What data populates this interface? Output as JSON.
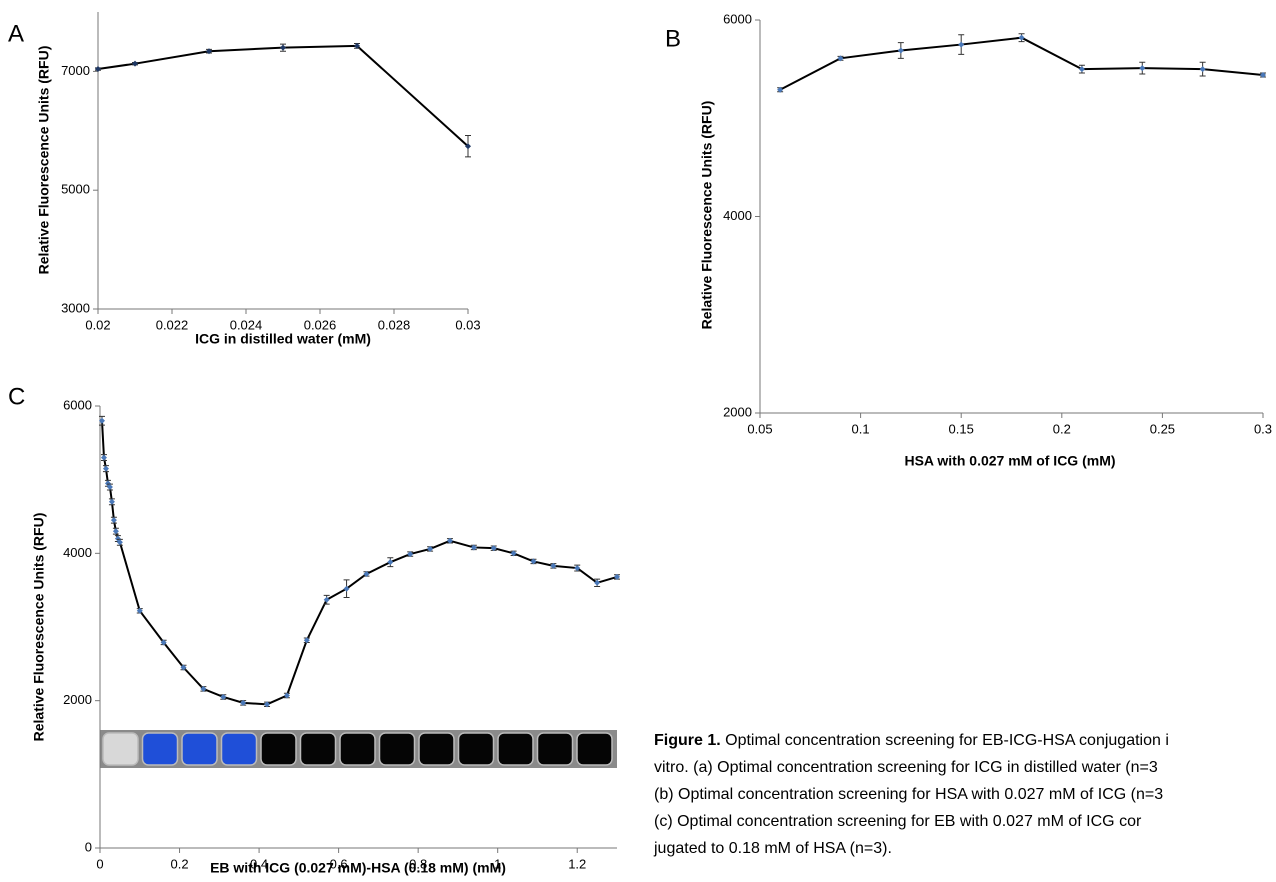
{
  "chart_data": [
    {
      "type": "line",
      "panel": "A",
      "xlabel": "ICG in distilled water (mM)",
      "ylabel": "Relative Fluorescence Units (RFU)",
      "x": [
        0.02,
        0.021,
        0.023,
        0.025,
        0.027,
        0.03
      ],
      "values": [
        7040,
        7130,
        7340,
        7400,
        7430,
        5740
      ],
      "errors": [
        20,
        20,
        30,
        60,
        40,
        180
      ],
      "color": "#000000",
      "marker_color": "#1f3864",
      "xlim": [
        0.02,
        0.03
      ],
      "ylim": [
        3000,
        8000
      ],
      "xticks": [
        0.02,
        0.022,
        0.024,
        0.026,
        0.028,
        0.03
      ],
      "yticks": [
        3000,
        5000,
        7000
      ]
    },
    {
      "type": "line",
      "panel": "B",
      "xlabel": "HSA with 0.027 mM of ICG (mM)",
      "ylabel": "Relative Fluorescence Units (RFU)",
      "x": [
        0.06,
        0.09,
        0.12,
        0.15,
        0.18,
        0.21,
        0.24,
        0.27,
        0.3
      ],
      "values": [
        5290,
        5610,
        5690,
        5750,
        5820,
        5500,
        5510,
        5500,
        5440
      ],
      "errors": [
        20,
        20,
        80,
        100,
        40,
        40,
        60,
        70,
        20
      ],
      "color": "#000000",
      "marker_color": "#4a78b8",
      "xlim": [
        0.05,
        0.3
      ],
      "ylim": [
        2000,
        6000
      ],
      "xticks": [
        0.05,
        0.1,
        0.15,
        0.2,
        0.25,
        0.3
      ],
      "yticks": [
        2000,
        4000,
        6000
      ]
    },
    {
      "type": "line",
      "panel": "C",
      "xlabel": "EB with ICG (0.027 mM)-HSA (0.18 mM) (mM)",
      "ylabel": "Relative Fluorescence Units (RFU)",
      "x": [
        0.005,
        0.01,
        0.015,
        0.02,
        0.025,
        0.03,
        0.035,
        0.04,
        0.045,
        0.05,
        0.1,
        0.16,
        0.21,
        0.26,
        0.31,
        0.36,
        0.42,
        0.47,
        0.52,
        0.57,
        0.62,
        0.67,
        0.73,
        0.78,
        0.83,
        0.88,
        0.94,
        0.99,
        1.04,
        1.09,
        1.14,
        1.2,
        1.25,
        1.3
      ],
      "values": [
        5800,
        5300,
        5150,
        4950,
        4900,
        4700,
        4450,
        4300,
        4200,
        4150,
        3220,
        2790,
        2450,
        2160,
        2050,
        1970,
        1950,
        2070,
        2820,
        3370,
        3520,
        3720,
        3880,
        3990,
        4060,
        4170,
        4080,
        4070,
        4000,
        3890,
        3830,
        3800,
        3600,
        3680
      ],
      "errors": [
        60,
        40,
        40,
        40,
        40,
        40,
        40,
        40,
        40,
        40,
        30,
        30,
        30,
        30,
        30,
        30,
        30,
        30,
        30,
        60,
        120,
        30,
        60,
        30,
        30,
        30,
        30,
        30,
        30,
        30,
        30,
        40,
        50,
        30
      ],
      "color": "#000000",
      "marker_color": "#4a78b8",
      "xlim": [
        0,
        1.3
      ],
      "ylim": [
        0,
        6000
      ],
      "xticks": [
        0,
        0.2,
        0.4,
        0.6,
        0.8,
        1,
        1.2
      ],
      "yticks": [
        0,
        2000,
        4000,
        6000
      ]
    }
  ],
  "caption": {
    "label": "Figure 1.",
    "lines": [
      " Optimal concentration screening for EB-ICG-HSA conjugation i",
      "vitro. (a) Optimal concentration screening for ICG in distilled water (n=3",
      "(b) Optimal concentration screening for HSA with 0.027 mM of ICG (n=3",
      "(c) Optimal concentration screening for EB with 0.027 mM of ICG cor",
      "jugated to 0.18 mM of HSA (n=3)."
    ]
  }
}
